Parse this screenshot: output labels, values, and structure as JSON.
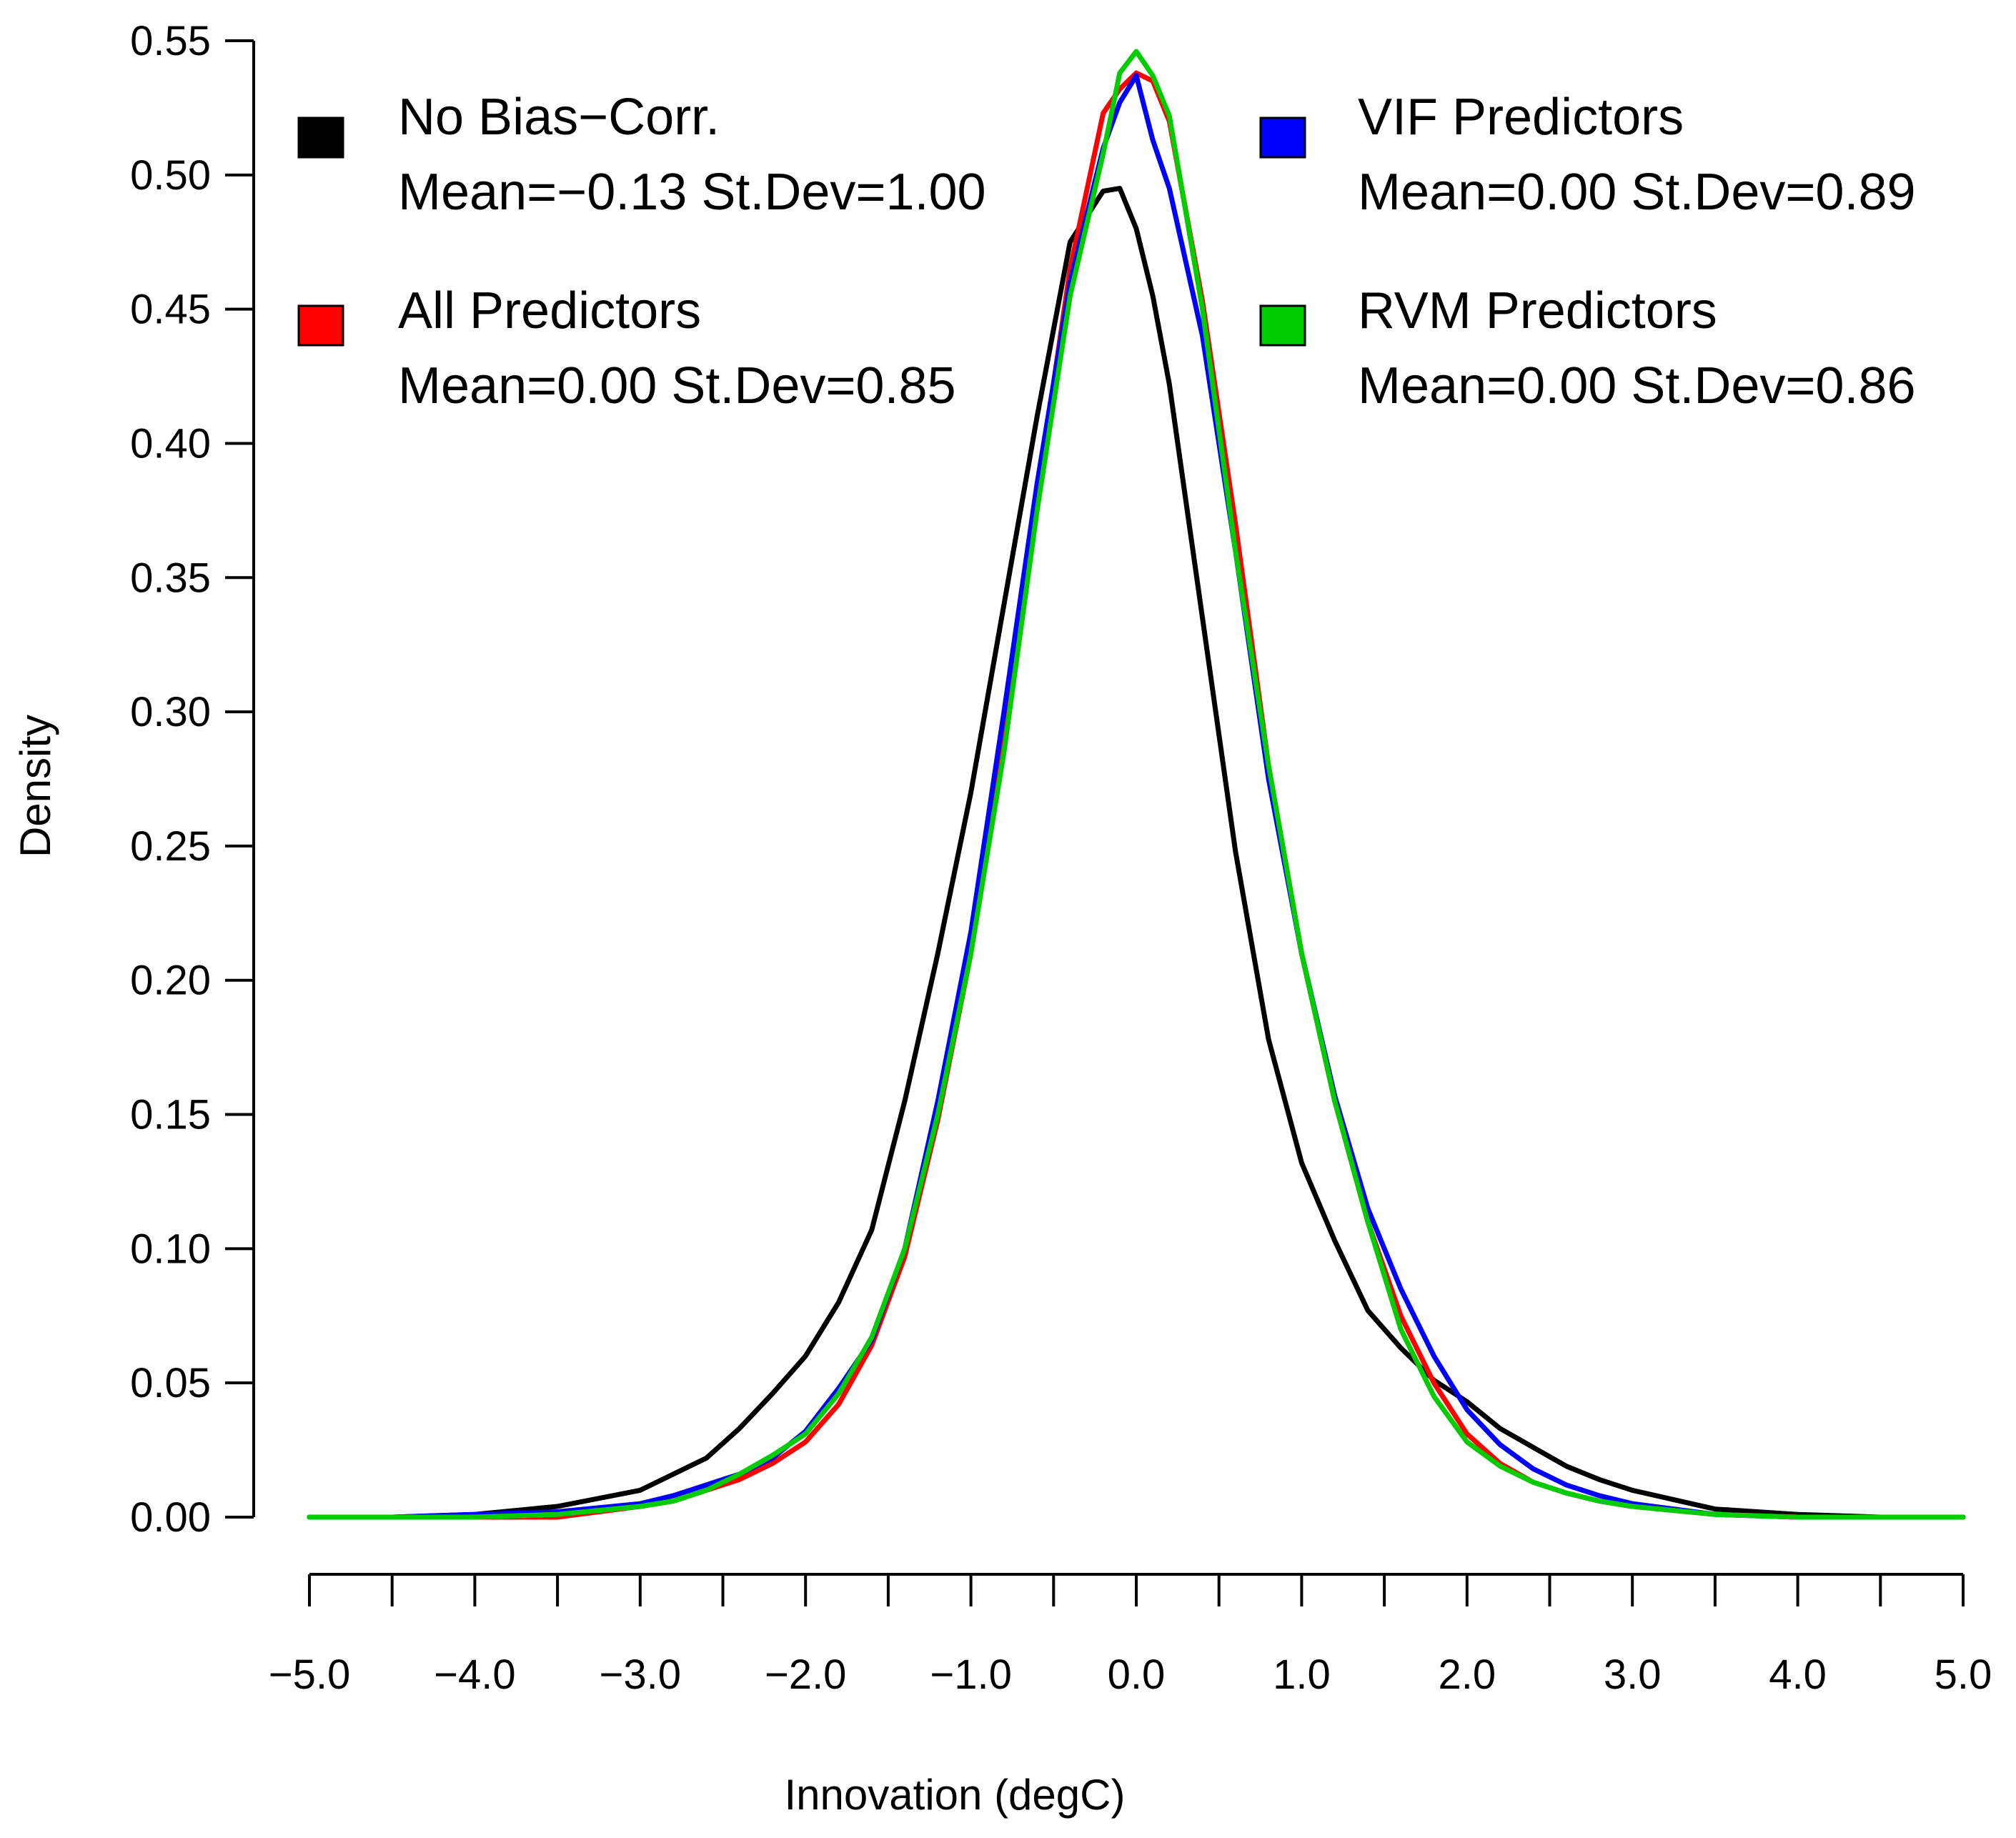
{
  "chart_data": {
    "type": "line",
    "title": "",
    "xlabel": "Innovation (degC)",
    "ylabel": "Density",
    "xlim": [
      -5.0,
      5.0
    ],
    "ylim": [
      0.0,
      0.55
    ],
    "x_ticks": [
      "−5.0",
      "−4.5",
      "−4.0",
      "−3.5",
      "−3.0",
      "−2.5",
      "−2.0",
      "−1.5",
      "−1.0",
      "−0.5",
      "0.0",
      "0.5",
      "1.0",
      "1.5",
      "2.0",
      "2.5",
      "3.0",
      "3.5",
      "4.0",
      "4.5",
      "5.0"
    ],
    "x_tick_labels": [
      "−5.0",
      "",
      "−4.0",
      "",
      "−3.0",
      "",
      "−2.0",
      "",
      "−1.0",
      "",
      "0.0",
      "",
      "1.0",
      "",
      "2.0",
      "",
      "3.0",
      "",
      "4.0",
      "",
      "5.0"
    ],
    "y_tick_labels": [
      "0.00",
      "0.05",
      "0.10",
      "0.15",
      "0.20",
      "0.25",
      "0.30",
      "0.35",
      "0.40",
      "0.45",
      "0.50",
      "0.55"
    ],
    "grid": false,
    "legend_position": "top",
    "x": [
      -5.0,
      -4.5,
      -4.0,
      -3.5,
      -3.0,
      -2.8,
      -2.6,
      -2.4,
      -2.2,
      -2.0,
      -1.8,
      -1.6,
      -1.4,
      -1.2,
      -1.0,
      -0.8,
      -0.6,
      -0.4,
      -0.2,
      -0.1,
      0.0,
      0.1,
      0.2,
      0.4,
      0.6,
      0.8,
      1.0,
      1.2,
      1.4,
      1.6,
      1.8,
      2.0,
      2.2,
      2.4,
      2.6,
      2.8,
      3.0,
      3.5,
      4.0,
      4.5,
      5.0
    ],
    "series": [
      {
        "name": "No Bias−Corr.",
        "stats": "Mean=−0.13 St.Dev=1.00",
        "color": "#000000",
        "values": [
          0.0,
          0.0,
          0.001,
          0.004,
          0.01,
          0.016,
          0.022,
          0.033,
          0.046,
          0.06,
          0.08,
          0.107,
          0.155,
          0.21,
          0.27,
          0.34,
          0.41,
          0.475,
          0.494,
          0.495,
          0.48,
          0.455,
          0.422,
          0.335,
          0.248,
          0.178,
          0.132,
          0.103,
          0.077,
          0.063,
          0.051,
          0.043,
          0.033,
          0.026,
          0.019,
          0.014,
          0.01,
          0.003,
          0.001,
          0.0,
          0.0
        ]
      },
      {
        "name": "All Predictors",
        "stats": "Mean=0.00 St.Dev=0.85",
        "color": "#ff0000",
        "values": [
          0.0,
          0.0,
          0.0,
          0.0,
          0.004,
          0.006,
          0.01,
          0.014,
          0.02,
          0.028,
          0.042,
          0.064,
          0.097,
          0.148,
          0.21,
          0.29,
          0.38,
          0.465,
          0.523,
          0.532,
          0.538,
          0.535,
          0.52,
          0.453,
          0.37,
          0.28,
          0.21,
          0.155,
          0.11,
          0.075,
          0.05,
          0.031,
          0.02,
          0.013,
          0.009,
          0.006,
          0.004,
          0.001,
          0.0,
          0.0,
          0.0
        ]
      },
      {
        "name": "VIF Predictors",
        "stats": "Mean=0.00 St.Dev=0.89",
        "color": "#0000ff",
        "values": [
          0.0,
          0.0,
          0.001,
          0.002,
          0.005,
          0.008,
          0.012,
          0.016,
          0.022,
          0.032,
          0.048,
          0.066,
          0.1,
          0.155,
          0.218,
          0.3,
          0.385,
          0.46,
          0.51,
          0.527,
          0.537,
          0.513,
          0.495,
          0.44,
          0.36,
          0.275,
          0.21,
          0.157,
          0.115,
          0.085,
          0.06,
          0.04,
          0.027,
          0.018,
          0.012,
          0.008,
          0.005,
          0.001,
          0.0,
          0.0,
          0.0
        ]
      },
      {
        "name": "RVM Predictors",
        "stats": "Mean=0.00 St.Dev=0.86",
        "color": "#00cc00",
        "values": [
          0.0,
          0.0,
          0.0,
          0.001,
          0.004,
          0.006,
          0.01,
          0.016,
          0.023,
          0.031,
          0.046,
          0.067,
          0.1,
          0.15,
          0.21,
          0.285,
          0.375,
          0.455,
          0.508,
          0.538,
          0.546,
          0.537,
          0.522,
          0.45,
          0.36,
          0.28,
          0.21,
          0.155,
          0.11,
          0.07,
          0.045,
          0.028,
          0.019,
          0.013,
          0.009,
          0.006,
          0.004,
          0.001,
          0.0,
          0.0,
          0.0
        ]
      }
    ]
  }
}
